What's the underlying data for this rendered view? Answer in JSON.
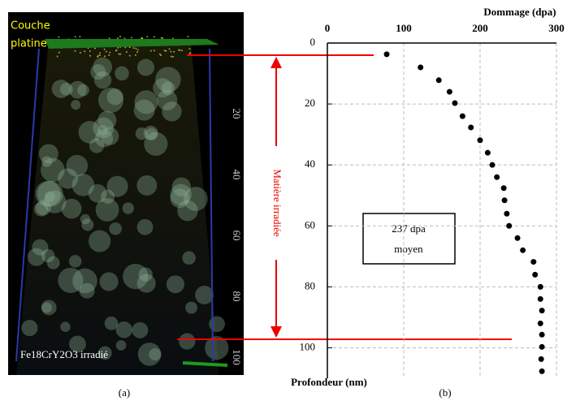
{
  "chart_data": {
    "type": "scatter",
    "x_label": "Dommage (dpa)",
    "y_label": "Profondeur (nm)",
    "annotation_box": [
      "237 dpa",
      "moyen"
    ],
    "x": [
      77.7,
      122,
      146,
      160,
      167,
      177,
      188,
      200,
      210,
      216,
      222,
      231,
      232,
      235,
      238,
      249,
      256,
      270,
      272,
      279,
      279,
      281,
      279,
      281,
      281,
      280,
      281
    ],
    "values": [
      3.7,
      8,
      12.2,
      16,
      19.7,
      24,
      27.7,
      31.9,
      36,
      40,
      44,
      47.6,
      51.6,
      56,
      60,
      64,
      68,
      71.8,
      76,
      80,
      84,
      87.8,
      92,
      95.7,
      99.7,
      103.7,
      107.7
    ],
    "color": "#000000",
    "xlim": [
      0,
      300
    ],
    "xticks": [
      0,
      100,
      200,
      300
    ],
    "ylim": [
      0,
      110
    ],
    "yticks": [
      0,
      20,
      40,
      60,
      80,
      100
    ],
    "y_inverted": true,
    "grid": true
  },
  "image": {
    "layer_label": [
      "Couche",
      "platine"
    ],
    "side_label": "Matière irradiée",
    "caption": "Fe18CrY2O3 irradié",
    "scale_ticks": [
      20,
      40,
      60,
      80,
      100
    ]
  },
  "panel_labels": [
    "(a)",
    "(b)"
  ]
}
